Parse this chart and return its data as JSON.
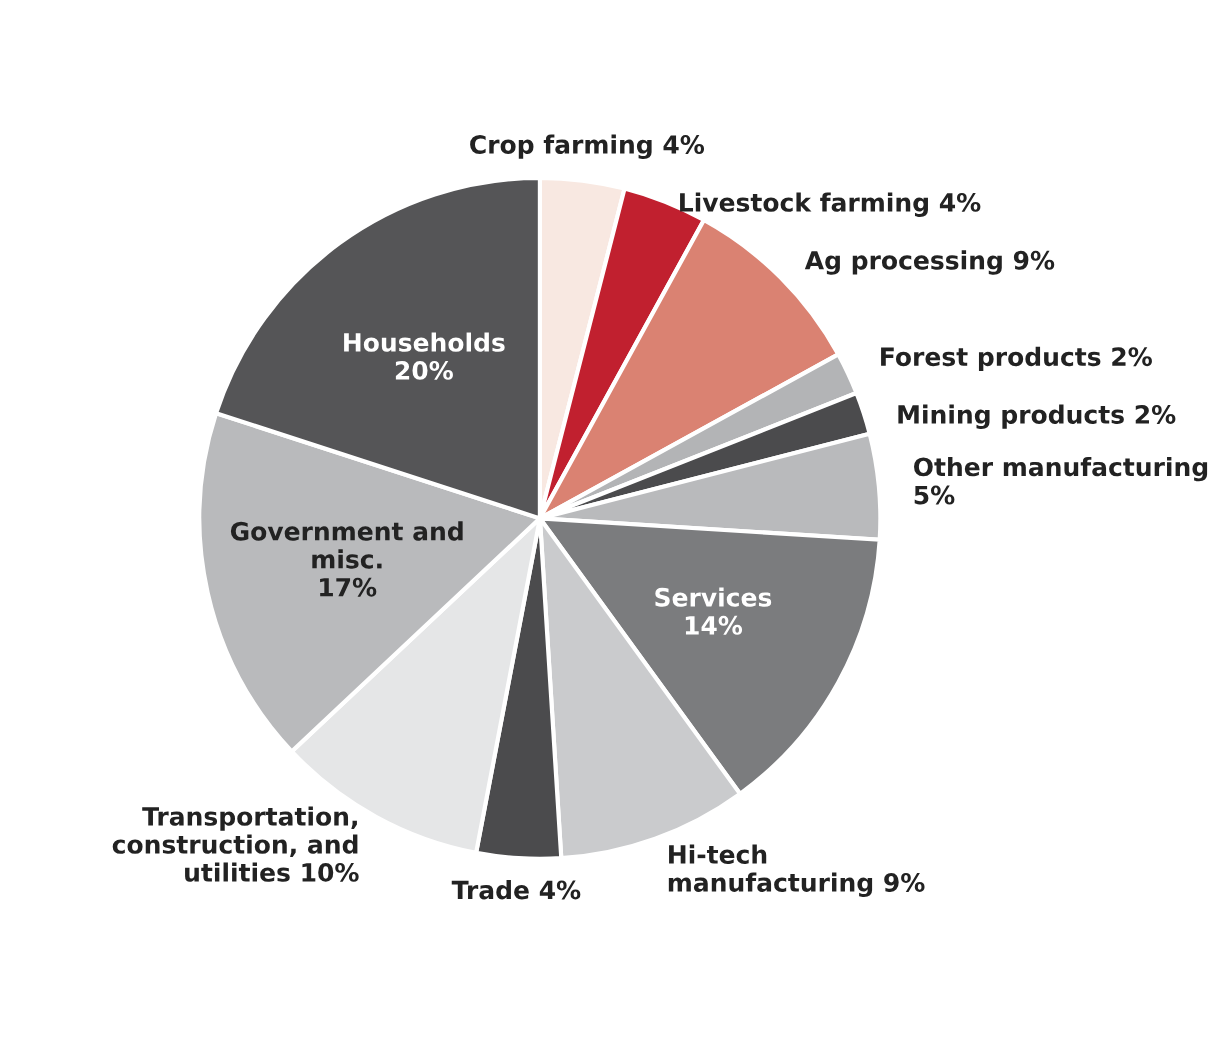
{
  "chart_data": {
    "type": "pie",
    "value_labels": [
      "4%",
      "4%",
      "9%",
      "2%",
      "2%",
      "5%",
      "14%",
      "9%",
      "4%",
      "10%",
      "17%",
      "20%"
    ],
    "categories": [
      "Crop farming",
      "Livestock farming",
      "Ag processing",
      "Forest products",
      "Mining products",
      "Other manufacturing",
      "Services",
      "Hi-tech manufacturing",
      "Trade",
      "Transportation, construction, and utilities",
      "Government and misc.",
      "Households"
    ],
    "values": [
      4,
      4,
      9,
      2,
      2,
      5,
      14,
      9,
      4,
      10,
      17,
      20
    ],
    "colors": [
      "#f8e8e1",
      "#c1202f",
      "#da8272",
      "#b3b4b6",
      "#4b4b4d",
      "#b9babc",
      "#7b7c7e",
      "#cacbcd",
      "#4b4b4d",
      "#e5e6e7",
      "#b9babc",
      "#555557"
    ]
  }
}
